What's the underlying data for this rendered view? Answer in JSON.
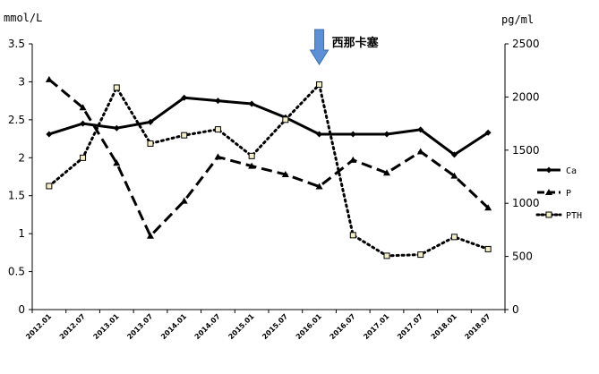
{
  "chart_data": {
    "type": "line",
    "y_left_unit": "mmol/L",
    "y_right_unit": "pg/ml",
    "y_left_range": [
      0,
      3.5
    ],
    "y_left_ticks": [
      "0",
      "0.5",
      "1",
      "1.5",
      "2",
      "2.5",
      "3",
      "3.5"
    ],
    "y_right_range": [
      0,
      2500
    ],
    "y_right_ticks": [
      "0",
      "500",
      "1000",
      "1500",
      "2000",
      "2500"
    ],
    "grid": false,
    "legend_position": "right",
    "categories": [
      "2012.01",
      "2012.07",
      "2013.01",
      "2013.07",
      "2014.01",
      "2014.07",
      "2015.01",
      "2015.07",
      "2016.01",
      "2016.07",
      "2017.01",
      "2017.07",
      "2018.01",
      "2018.07"
    ],
    "series": [
      {
        "name": "Ca",
        "axis": "left",
        "style": "solid",
        "marker": "diamond",
        "color": "#000000",
        "values": [
          2.31,
          2.45,
          2.39,
          2.47,
          2.79,
          2.75,
          2.71,
          2.53,
          2.31,
          2.31,
          2.31,
          2.37,
          2.04,
          2.33
        ]
      },
      {
        "name": "P",
        "axis": "left",
        "style": "dashed",
        "marker": "triangle",
        "color": "#000000",
        "values": [
          3.03,
          2.66,
          1.93,
          0.97,
          1.43,
          2.01,
          1.89,
          1.78,
          1.62,
          1.97,
          1.8,
          2.08,
          1.76,
          1.34
        ]
      },
      {
        "name": "PTH",
        "axis": "right",
        "style": "dotted",
        "marker": "square",
        "color": "#000000",
        "values": [
          1162,
          1428,
          2088,
          1562,
          1640,
          1695,
          1445,
          1786,
          2117,
          700,
          506,
          517,
          683,
          569
        ]
      }
    ],
    "annotation": {
      "text": "西那卡塞",
      "at_category": "2016.01",
      "arrow_color": "#5b8fd6"
    }
  }
}
